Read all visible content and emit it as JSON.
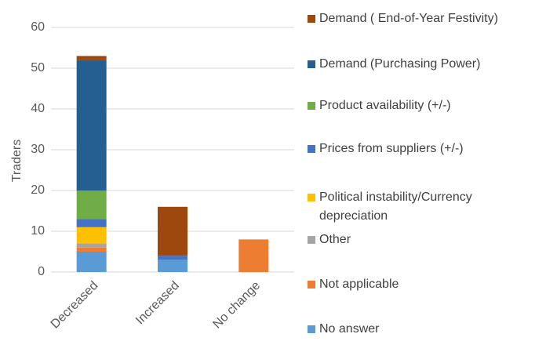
{
  "chart_data": {
    "type": "stacked-bar",
    "y_label": "Traders",
    "categories": [
      "Decreased",
      "Increased",
      "No change"
    ],
    "ylim": [
      0,
      60
    ],
    "yticks": [
      0,
      10,
      20,
      30,
      40,
      50,
      60
    ],
    "grid": true,
    "series": [
      {
        "name": "No answer",
        "color": "#5b9bd5",
        "values": [
          5,
          3,
          0
        ]
      },
      {
        "name": "Not applicable",
        "color": "#ed7d31",
        "values": [
          1,
          0,
          8
        ]
      },
      {
        "name": "Other",
        "color": "#a5a5a5",
        "values": [
          1,
          0,
          0
        ]
      },
      {
        "name": "Political instability/Currency depreciation",
        "color": "#ffc000",
        "values": [
          4,
          0,
          0
        ]
      },
      {
        "name": "Prices from suppliers (+/-)",
        "color": "#4472c4",
        "values": [
          2,
          1,
          0
        ]
      },
      {
        "name": "Product availability (+/-)",
        "color": "#70ad47",
        "values": [
          7,
          0,
          0
        ]
      },
      {
        "name": "Demand (Purchasing Power)",
        "color": "#255e91",
        "values": [
          32,
          0,
          0
        ]
      },
      {
        "name": "Demand ( End-of-Year Festivity)",
        "color": "#9e480e",
        "values": [
          1,
          12,
          0
        ]
      }
    ]
  }
}
